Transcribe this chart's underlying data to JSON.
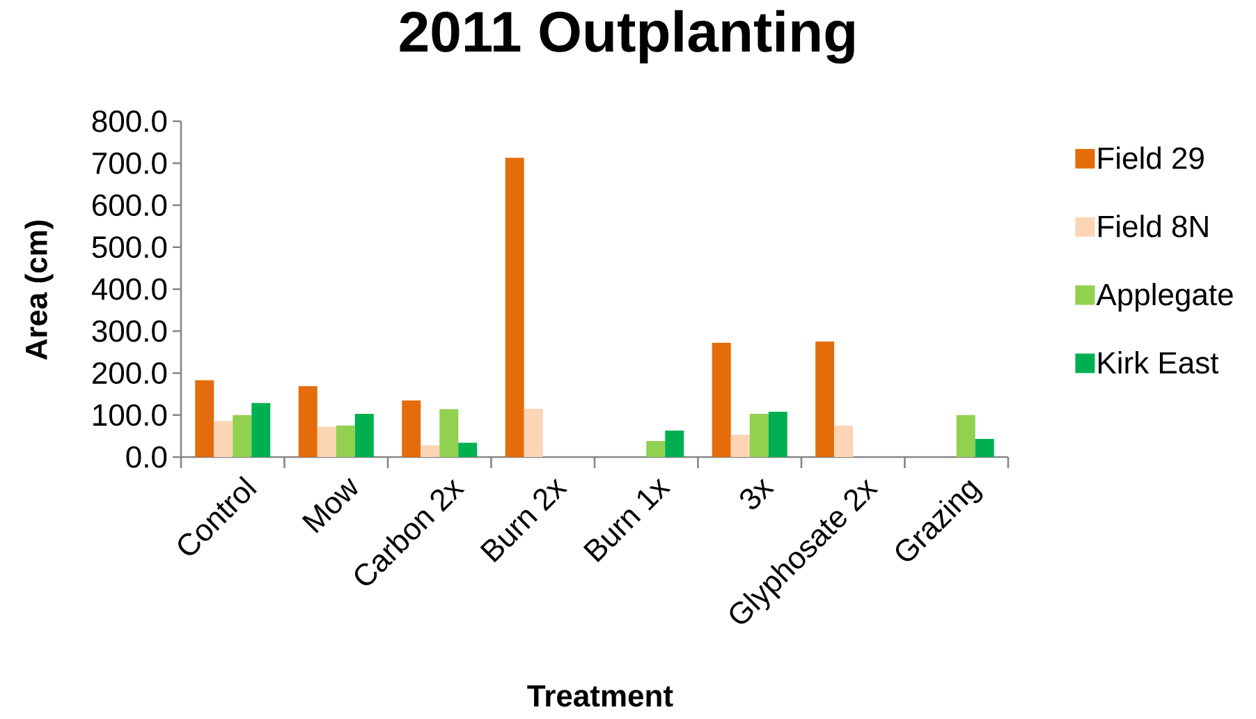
{
  "chart_data": {
    "type": "bar",
    "title": "2011 Outplanting",
    "xlabel": "Treatment",
    "ylabel": "Area (cm)",
    "categories": [
      "Control",
      "Mow",
      "Carbon 2x",
      "Burn 2x",
      "Burn 1x",
      "3x",
      "Glyphosate 2x",
      "Grazing"
    ],
    "series": [
      {
        "name": "Field 29",
        "color": "#e46c0a",
        "values": [
          183,
          169,
          135,
          713,
          null,
          272,
          275,
          null
        ]
      },
      {
        "name": "Field 8N",
        "color": "#fcd5b5",
        "values": [
          86,
          72,
          28,
          115,
          null,
          53,
          75,
          null
        ]
      },
      {
        "name": "Applegate",
        "color": "#92d050",
        "values": [
          100,
          75,
          114,
          null,
          38,
          103,
          null,
          100
        ]
      },
      {
        "name": "Kirk East",
        "color": "#00b050",
        "values": [
          129,
          103,
          34,
          null,
          63,
          108,
          null,
          43
        ]
      }
    ],
    "ylim": [
      0,
      800
    ],
    "yticks": [
      {
        "value": 0,
        "label": "0.0"
      },
      {
        "value": 100,
        "label": "100.0"
      },
      {
        "value": 200,
        "label": "200.0"
      },
      {
        "value": 300,
        "label": "300.0"
      },
      {
        "value": 400,
        "label": "400.0"
      },
      {
        "value": 500,
        "label": "500.0"
      },
      {
        "value": 600,
        "label": "600.0"
      },
      {
        "value": 700,
        "label": "700.0"
      },
      {
        "value": 800,
        "label": "800.0"
      }
    ],
    "legend": "right"
  }
}
